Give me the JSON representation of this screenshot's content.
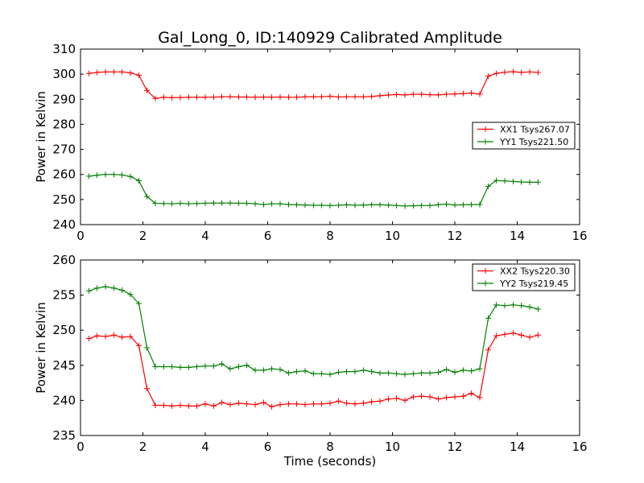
{
  "title": "Gal_Long_0, ID:140929 Calibrated Amplitude",
  "chart_data": [
    {
      "type": "line",
      "xlabel": "",
      "ylabel": "Power in Kelvin",
      "xlim": [
        0,
        16
      ],
      "ylim": [
        240,
        310
      ],
      "xticks": [
        0,
        2,
        4,
        6,
        8,
        10,
        12,
        14,
        16
      ],
      "yticks": [
        240,
        250,
        260,
        270,
        280,
        290,
        300,
        310
      ],
      "legend_position": "center-right",
      "x": [
        0.27,
        0.53,
        0.8,
        1.07,
        1.33,
        1.6,
        1.87,
        2.13,
        2.4,
        2.67,
        2.93,
        3.2,
        3.47,
        3.73,
        4.0,
        4.27,
        4.53,
        4.8,
        5.07,
        5.33,
        5.6,
        5.87,
        6.13,
        6.4,
        6.67,
        6.93,
        7.2,
        7.47,
        7.73,
        8.0,
        8.27,
        8.53,
        8.8,
        9.07,
        9.33,
        9.6,
        9.87,
        10.13,
        10.4,
        10.67,
        10.93,
        11.2,
        11.47,
        11.73,
        12.0,
        12.27,
        12.53,
        12.8,
        13.07,
        13.33,
        13.6,
        13.87,
        14.13,
        14.4,
        14.67
      ],
      "series": [
        {
          "name": "XX1 Tsys267.07",
          "color": "#ff0000",
          "values": [
            300.3,
            300.7,
            300.9,
            300.9,
            300.9,
            300.5,
            299.6,
            293.5,
            290.3,
            290.8,
            290.6,
            290.7,
            290.8,
            290.8,
            290.8,
            290.8,
            291.0,
            291.0,
            290.9,
            290.9,
            290.8,
            290.9,
            290.8,
            290.9,
            290.8,
            290.8,
            291.0,
            291.0,
            291.0,
            291.2,
            290.9,
            291.0,
            291.0,
            291.0,
            291.1,
            291.4,
            291.7,
            291.9,
            291.7,
            292.0,
            292.0,
            291.8,
            291.7,
            292.0,
            292.1,
            292.3,
            292.5,
            292.0,
            299.2,
            300.3,
            300.8,
            301.0,
            300.7,
            300.9,
            300.7
          ]
        },
        {
          "name": "YY1 Tsys221.50",
          "color": "#008000",
          "values": [
            259.3,
            259.7,
            260.0,
            260.0,
            259.8,
            259.2,
            257.5,
            251.2,
            248.5,
            248.4,
            248.3,
            248.5,
            248.3,
            248.4,
            248.5,
            248.6,
            248.6,
            248.6,
            248.5,
            248.5,
            248.3,
            248.0,
            248.3,
            248.3,
            248.0,
            247.9,
            247.8,
            247.7,
            247.7,
            247.6,
            247.7,
            247.9,
            247.7,
            247.8,
            247.9,
            247.9,
            247.8,
            247.6,
            247.4,
            247.5,
            247.6,
            247.6,
            247.9,
            248.2,
            247.8,
            247.9,
            248.0,
            248.0,
            255.3,
            257.6,
            257.4,
            257.2,
            257.0,
            256.9,
            256.9
          ]
        }
      ]
    },
    {
      "type": "line",
      "xlabel": "Time (seconds)",
      "ylabel": "Power in Kelvin",
      "xlim": [
        0,
        16
      ],
      "ylim": [
        235,
        260
      ],
      "xticks": [
        0,
        2,
        4,
        6,
        8,
        10,
        12,
        14,
        16
      ],
      "yticks": [
        235,
        240,
        245,
        250,
        255,
        260
      ],
      "legend_position": "top-right",
      "x": [
        0.27,
        0.53,
        0.8,
        1.07,
        1.33,
        1.6,
        1.87,
        2.13,
        2.4,
        2.67,
        2.93,
        3.2,
        3.47,
        3.73,
        4.0,
        4.27,
        4.53,
        4.8,
        5.07,
        5.33,
        5.6,
        5.87,
        6.13,
        6.4,
        6.67,
        6.93,
        7.2,
        7.47,
        7.73,
        8.0,
        8.27,
        8.53,
        8.8,
        9.07,
        9.33,
        9.6,
        9.87,
        10.13,
        10.4,
        10.67,
        10.93,
        11.2,
        11.47,
        11.73,
        12.0,
        12.27,
        12.53,
        12.8,
        13.07,
        13.33,
        13.6,
        13.87,
        14.13,
        14.4,
        14.67
      ],
      "series": [
        {
          "name": "XX2 Tsys220.30",
          "color": "#ff0000",
          "values": [
            248.8,
            249.2,
            249.1,
            249.3,
            249.0,
            249.1,
            247.8,
            241.7,
            239.3,
            239.3,
            239.2,
            239.3,
            239.2,
            239.2,
            239.5,
            239.2,
            239.7,
            239.4,
            239.6,
            239.5,
            239.4,
            239.7,
            239.1,
            239.4,
            239.5,
            239.5,
            239.4,
            239.5,
            239.5,
            239.6,
            239.9,
            239.6,
            239.5,
            239.6,
            239.8,
            239.9,
            240.2,
            240.3,
            240.0,
            240.5,
            240.6,
            240.5,
            240.2,
            240.4,
            240.5,
            240.6,
            241.0,
            240.4,
            247.2,
            249.2,
            249.4,
            249.6,
            249.3,
            249.0,
            249.3
          ]
        },
        {
          "name": "YY2 Tsys219.45",
          "color": "#008000",
          "values": [
            255.6,
            256.0,
            256.2,
            256.0,
            255.7,
            255.1,
            253.8,
            247.5,
            244.8,
            244.8,
            244.8,
            244.7,
            244.7,
            244.8,
            244.9,
            244.9,
            245.2,
            244.5,
            244.8,
            245.0,
            244.3,
            244.3,
            244.5,
            244.4,
            243.9,
            244.1,
            244.2,
            243.8,
            243.8,
            243.7,
            244.0,
            244.1,
            244.1,
            244.3,
            244.1,
            243.9,
            243.9,
            243.8,
            243.7,
            243.8,
            243.9,
            243.9,
            244.0,
            244.4,
            244.0,
            244.3,
            244.2,
            244.5,
            251.7,
            253.6,
            253.5,
            253.6,
            253.5,
            253.3,
            253.0
          ]
        }
      ]
    }
  ]
}
